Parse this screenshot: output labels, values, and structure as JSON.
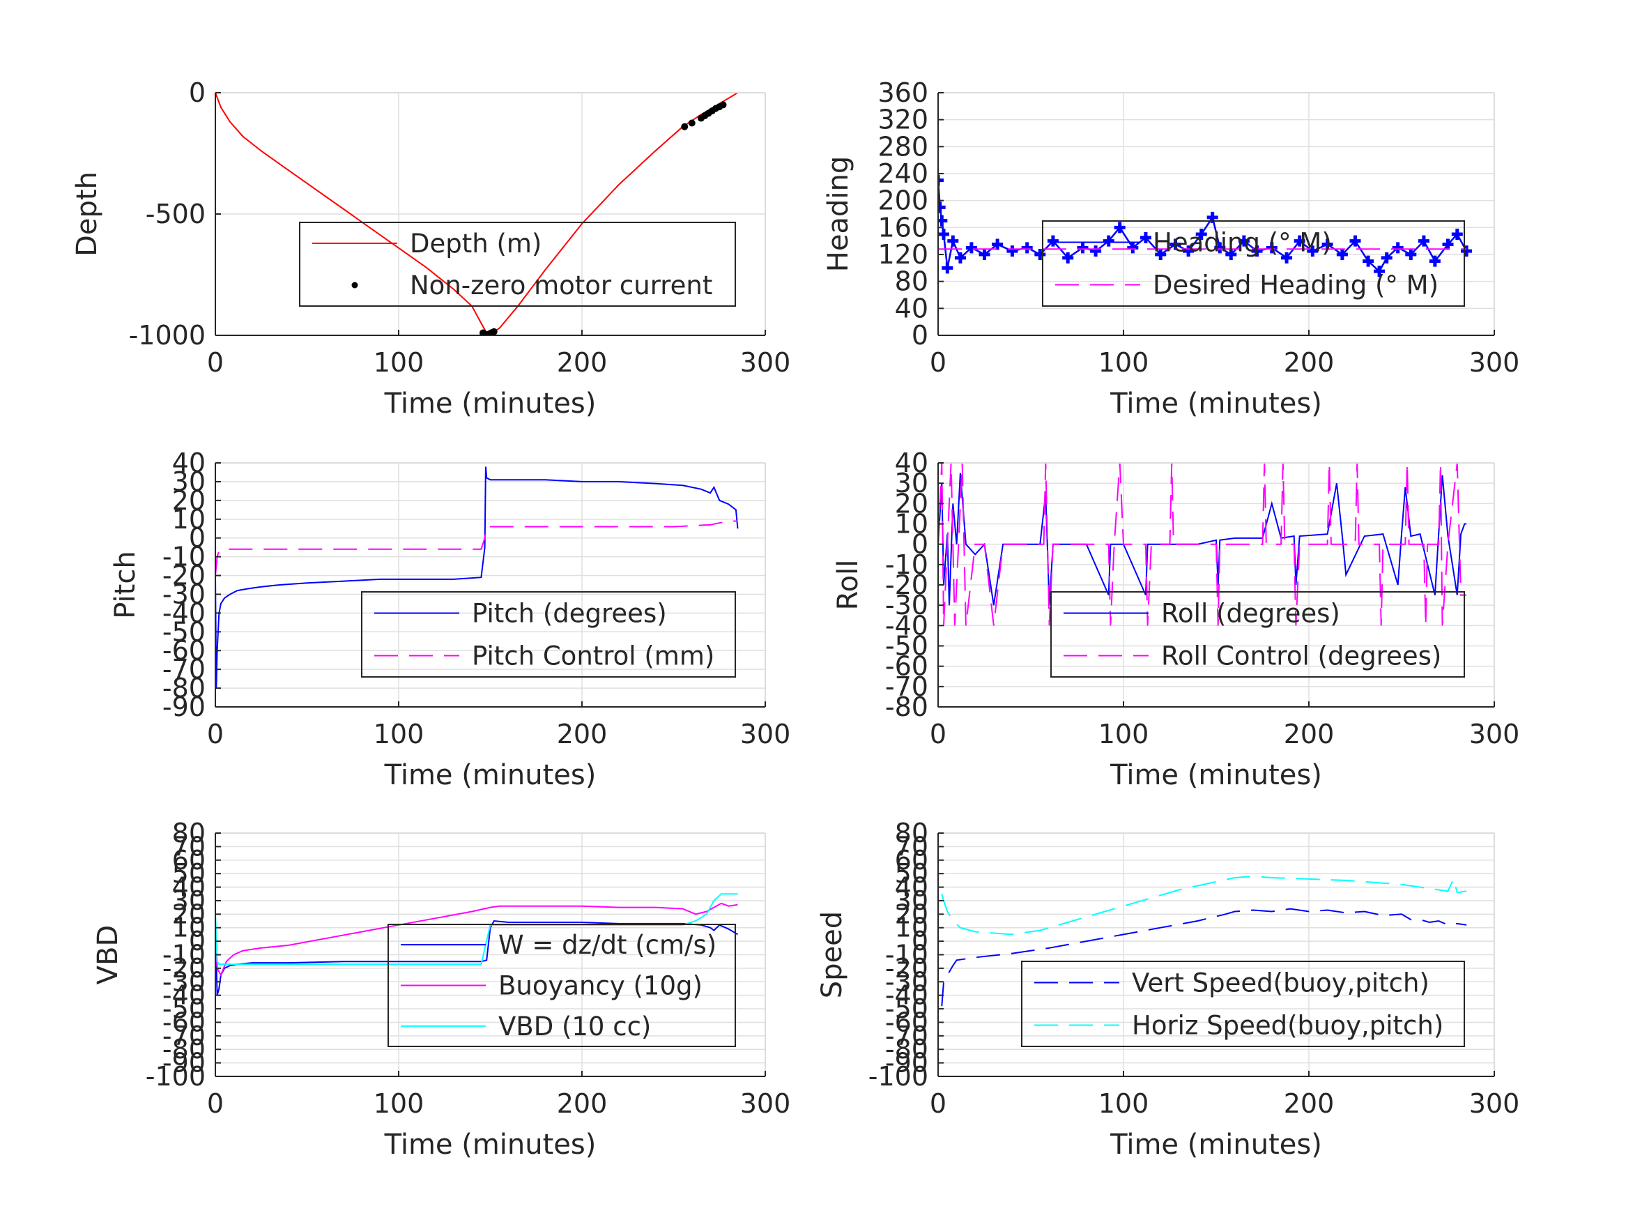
{
  "colors": {
    "red": "#ff0000",
    "blue": "#0000ff",
    "magenta": "#ff00ff",
    "cyan": "#00ffff",
    "black": "#000000"
  },
  "chart_data": [
    {
      "id": "depth",
      "type": "line",
      "xlabel": "Time (minutes)",
      "ylabel": "Depth",
      "xlim": [
        0,
        300
      ],
      "ylim": [
        -1000,
        0
      ],
      "xticks": [
        0,
        100,
        200,
        300
      ],
      "yticks": [
        0,
        -500,
        -1000
      ],
      "ytick_labels": [
        "0",
        "-500",
        "-1000"
      ],
      "grid": true,
      "legend_position": "bottom-right",
      "series": [
        {
          "name": "Depth (m)",
          "color": "red",
          "style": "solid",
          "x": [
            0,
            3,
            8,
            15,
            25,
            40,
            55,
            70,
            85,
            100,
            115,
            130,
            140,
            145,
            148,
            150,
            155,
            165,
            180,
            200,
            220,
            240,
            255,
            265,
            275,
            285
          ],
          "y": [
            0,
            -60,
            -120,
            -180,
            -240,
            -320,
            -400,
            -480,
            -560,
            -640,
            -720,
            -810,
            -880,
            -950,
            -990,
            -995,
            -970,
            -880,
            -730,
            -540,
            -380,
            -240,
            -140,
            -90,
            -45,
            0
          ]
        },
        {
          "name": "Non-zero motor current",
          "color": "black",
          "style": "dots",
          "x": [
            146,
            147,
            148,
            149,
            150,
            151,
            152,
            256,
            260,
            265,
            267,
            269,
            271,
            273,
            275,
            277
          ],
          "y": [
            -990,
            -995,
            -998,
            -996,
            -992,
            -988,
            -985,
            -140,
            -125,
            -105,
            -95,
            -85,
            -75,
            -65,
            -58,
            -50
          ]
        }
      ]
    },
    {
      "id": "heading",
      "type": "line",
      "xlabel": "Time (minutes)",
      "ylabel": "Heading",
      "xlim": [
        0,
        300
      ],
      "ylim": [
        0,
        360
      ],
      "xticks": [
        0,
        100,
        200,
        300
      ],
      "yticks": [
        0,
        40,
        80,
        120,
        160,
        200,
        240,
        280,
        320,
        360
      ],
      "ytick_labels": [
        "0",
        "40",
        "80",
        "120",
        "160",
        "200",
        "240",
        "280",
        "320",
        "360"
      ],
      "grid": true,
      "legend_position": "right",
      "series": [
        {
          "name": "Heading (° M)",
          "color": "blue",
          "style": "plus",
          "x": [
            0,
            1,
            2,
            3,
            5,
            8,
            12,
            18,
            25,
            32,
            40,
            48,
            55,
            62,
            70,
            78,
            85,
            92,
            98,
            105,
            112,
            120,
            128,
            135,
            142,
            148,
            152,
            158,
            165,
            172,
            180,
            188,
            195,
            202,
            210,
            218,
            225,
            232,
            238,
            242,
            248,
            255,
            262,
            268,
            275,
            280,
            285
          ],
          "y": [
            230,
            190,
            170,
            150,
            100,
            140,
            115,
            130,
            120,
            135,
            125,
            130,
            120,
            140,
            115,
            130,
            125,
            140,
            160,
            130,
            145,
            120,
            135,
            125,
            150,
            175,
            130,
            120,
            140,
            125,
            130,
            115,
            140,
            125,
            135,
            120,
            140,
            110,
            95,
            115,
            130,
            120,
            140,
            110,
            135,
            150,
            125
          ]
        },
        {
          "name": "Desired Heading (° M)",
          "color": "magenta",
          "style": "dashed",
          "x": [
            0,
            285
          ],
          "y": [
            128,
            128
          ]
        }
      ]
    },
    {
      "id": "pitch",
      "type": "line",
      "xlabel": "Time (minutes)",
      "ylabel": "Pitch",
      "xlim": [
        0,
        300
      ],
      "ylim": [
        -90,
        40
      ],
      "xticks": [
        0,
        100,
        200,
        300
      ],
      "yticks": [
        40,
        30,
        20,
        10,
        0,
        -10,
        -20,
        -30,
        -40,
        -50,
        -60,
        -70,
        -80,
        -90
      ],
      "ytick_labels": [
        "40",
        "30",
        "20",
        "10",
        "0",
        "-10",
        "-20",
        "-30",
        "-40",
        "-50",
        "-60",
        "-70",
        "-80",
        "-90"
      ],
      "grid": true,
      "legend_position": "bottom-right",
      "series": [
        {
          "name": "Pitch (degrees)",
          "color": "blue",
          "style": "solid",
          "x": [
            0,
            0.5,
            1,
            2,
            3,
            5,
            8,
            12,
            18,
            25,
            35,
            50,
            70,
            90,
            110,
            130,
            145,
            147,
            147.5,
            148,
            150,
            160,
            180,
            200,
            220,
            240,
            255,
            265,
            270,
            272,
            275,
            280,
            284,
            285
          ],
          "y": [
            -20,
            -80,
            -60,
            -40,
            -35,
            -32,
            -30,
            -28,
            -27,
            -26,
            -25,
            -24,
            -23,
            -22,
            -22,
            -22,
            -21,
            -5,
            38,
            32,
            31,
            31,
            31,
            30,
            30,
            29,
            28,
            26,
            24,
            27,
            20,
            18,
            15,
            5
          ]
        },
        {
          "name": "Pitch Control (mm)",
          "color": "magenta",
          "style": "dashed",
          "x": [
            0,
            1,
            2,
            5,
            50,
            100,
            145,
            147,
            148,
            200,
            250,
            270,
            280,
            285
          ],
          "y": [
            -20,
            -10,
            -7,
            -6,
            -6,
            -6,
            -6,
            0,
            6,
            6,
            6,
            7,
            9,
            9
          ]
        }
      ]
    },
    {
      "id": "roll",
      "type": "line",
      "xlabel": "Time (minutes)",
      "ylabel": "Roll",
      "xlim": [
        0,
        300
      ],
      "ylim": [
        -80,
        40
      ],
      "xticks": [
        0,
        100,
        200,
        300
      ],
      "yticks": [
        40,
        30,
        20,
        10,
        0,
        -10,
        -20,
        -30,
        -40,
        -50,
        -60,
        -70,
        -80
      ],
      "ytick_labels": [
        "40",
        "30",
        "20",
        "10",
        "0",
        "-10",
        "-20",
        "-30",
        "-40",
        "-50",
        "-60",
        "-70",
        "-80"
      ],
      "grid": true,
      "legend_position": "bottom-right",
      "series": [
        {
          "name": "Roll (degrees)",
          "color": "blue",
          "style": "solid",
          "x": [
            0,
            2,
            3,
            5,
            6,
            8,
            10,
            12,
            15,
            20,
            25,
            30,
            35,
            50,
            55,
            58,
            60,
            62,
            65,
            80,
            92,
            93,
            95,
            100,
            112,
            113,
            115,
            140,
            150,
            151,
            152,
            160,
            175,
            180,
            185,
            192,
            193,
            195,
            210,
            215,
            218,
            220,
            230,
            240,
            248,
            250,
            252,
            255,
            260,
            268,
            270,
            272,
            275,
            280,
            282,
            284,
            285
          ],
          "y": [
            0,
            30,
            -20,
            5,
            -30,
            20,
            0,
            35,
            0,
            -5,
            0,
            -30,
            0,
            0,
            0,
            25,
            -30,
            0,
            0,
            0,
            -25,
            0,
            0,
            0,
            -25,
            0,
            0,
            0,
            2,
            -20,
            2,
            3,
            3,
            20,
            3,
            4,
            -20,
            4,
            5,
            30,
            4,
            -15,
            4,
            5,
            -20,
            5,
            28,
            4,
            5,
            -25,
            5,
            34,
            4,
            -25,
            5,
            10,
            10
          ]
        },
        {
          "name": "Roll Control (degrees)",
          "color": "magenta",
          "style": "dashed",
          "x": [
            0,
            2,
            3,
            5,
            7,
            9,
            11,
            13,
            15,
            20,
            25,
            30,
            35,
            50,
            57,
            58,
            60,
            62,
            92,
            93,
            95,
            98,
            100,
            112,
            113,
            115,
            125,
            126,
            127,
            140,
            150,
            151,
            152,
            175,
            176,
            177,
            185,
            186,
            187,
            192,
            193,
            195,
            210,
            211,
            212,
            225,
            226,
            227,
            238,
            239,
            240,
            252,
            253,
            254,
            262,
            263,
            264,
            270,
            271,
            272,
            275,
            280,
            282,
            285
          ],
          "y": [
            0,
            40,
            -40,
            0,
            40,
            -40,
            0,
            40,
            -40,
            0,
            0,
            -40,
            0,
            0,
            0,
            40,
            -40,
            0,
            0,
            -40,
            0,
            40,
            0,
            0,
            -40,
            0,
            0,
            40,
            0,
            0,
            0,
            -40,
            0,
            0,
            40,
            0,
            0,
            40,
            0,
            0,
            -40,
            0,
            0,
            40,
            0,
            0,
            40,
            0,
            0,
            -40,
            0,
            0,
            40,
            0,
            0,
            -40,
            0,
            0,
            40,
            -40,
            0,
            40,
            -25,
            -25
          ]
        }
      ]
    },
    {
      "id": "vbd",
      "type": "line",
      "xlabel": "Time (minutes)",
      "ylabel": "VBD",
      "xlim": [
        0,
        300
      ],
      "ylim": [
        -100,
        80
      ],
      "xticks": [
        0,
        100,
        200,
        300
      ],
      "yticks": [
        80,
        70,
        60,
        50,
        40,
        30,
        20,
        10,
        0,
        -10,
        -20,
        -30,
        -40,
        -50,
        -60,
        -70,
        -80,
        -90,
        -100
      ],
      "ytick_labels": [
        "80",
        "70",
        "60",
        "50",
        "40",
        "30",
        "20",
        "10",
        "0",
        "-10",
        "-20",
        "-30",
        "-40",
        "-50",
        "-60",
        "-70",
        "-80",
        "-90",
        "-100"
      ],
      "grid": true,
      "legend_position": "bottom-right",
      "series": [
        {
          "name": "W = dz/dt (cm/s)",
          "color": "blue",
          "style": "solid",
          "x": [
            0,
            1,
            2,
            3,
            5,
            8,
            12,
            20,
            40,
            70,
            100,
            130,
            145,
            148,
            150,
            152,
            160,
            180,
            200,
            220,
            240,
            255,
            265,
            270,
            272,
            275,
            280,
            285
          ],
          "y": [
            15,
            -40,
            -35,
            -25,
            -20,
            -18,
            -17,
            -16,
            -16,
            -15,
            -15,
            -15,
            -15,
            -14,
            10,
            15,
            14,
            14,
            14,
            13,
            13,
            13,
            12,
            10,
            8,
            12,
            9,
            5
          ]
        },
        {
          "name": "Buoyancy (10g)",
          "color": "magenta",
          "style": "solid",
          "x": [
            0,
            1,
            3,
            6,
            10,
            15,
            25,
            40,
            60,
            80,
            100,
            120,
            140,
            150,
            155,
            180,
            200,
            220,
            240,
            255,
            262,
            268,
            272,
            276,
            280,
            285
          ],
          "y": [
            10,
            -20,
            -25,
            -15,
            -10,
            -7,
            -5,
            -3,
            2,
            7,
            12,
            17,
            22,
            25,
            26,
            26,
            26,
            25,
            25,
            24,
            20,
            22,
            25,
            28,
            26,
            27
          ]
        },
        {
          "name": "VBD (10 cc)",
          "color": "cyan",
          "style": "solid",
          "x": [
            0,
            1,
            2,
            4,
            10,
            30,
            80,
            145,
            150,
            200,
            255,
            262,
            268,
            272,
            276,
            285
          ],
          "y": [
            20,
            -15,
            -17,
            -17,
            -17,
            -17,
            -17,
            -17,
            12,
            12,
            12,
            15,
            20,
            30,
            35,
            35
          ]
        }
      ]
    },
    {
      "id": "speed",
      "type": "line",
      "xlabel": "Time (minutes)",
      "ylabel": "Speed",
      "xlim": [
        0,
        300
      ],
      "ylim": [
        -100,
        80
      ],
      "xticks": [
        0,
        100,
        200,
        300
      ],
      "yticks": [
        80,
        70,
        60,
        50,
        40,
        30,
        20,
        10,
        0,
        -10,
        -20,
        -30,
        -40,
        -50,
        -60,
        -70,
        -80,
        -90,
        -100
      ],
      "ytick_labels": [
        "80",
        "70",
        "60",
        "50",
        "40",
        "30",
        "20",
        "10",
        "0",
        "-10",
        "-20",
        "-30",
        "-40",
        "-50",
        "-60",
        "-70",
        "-80",
        "-90",
        "-100"
      ],
      "grid": true,
      "legend_position": "bottom-right",
      "series": [
        {
          "name": "Vert Speed(buoy,pitch)",
          "color": "blue",
          "style": "dashed",
          "x": [
            2,
            3,
            5,
            8,
            10,
            20,
            40,
            60,
            80,
            100,
            120,
            140,
            155,
            160,
            170,
            180,
            190,
            200,
            210,
            220,
            230,
            240,
            250,
            255,
            260,
            265,
            270,
            275,
            280,
            285
          ],
          "y": [
            -48,
            -30,
            -25,
            -18,
            -14,
            -12,
            -9,
            -5,
            0,
            5,
            10,
            15,
            20,
            22,
            23,
            22,
            24,
            22,
            23,
            21,
            22,
            19,
            20,
            16,
            16,
            14,
            15,
            12,
            13,
            12
          ]
        },
        {
          "name": "Horiz Speed(buoy,pitch)",
          "color": "cyan",
          "style": "dashed",
          "x": [
            2,
            3,
            5,
            8,
            12,
            20,
            30,
            40,
            55,
            70,
            90,
            110,
            130,
            150,
            160,
            170,
            180,
            200,
            220,
            240,
            250,
            260,
            265,
            270,
            275,
            278,
            280,
            285
          ],
          "y": [
            35,
            30,
            22,
            15,
            10,
            7,
            6,
            5,
            8,
            14,
            22,
            30,
            38,
            44,
            47,
            48,
            47,
            46,
            45,
            43,
            42,
            40,
            39,
            38,
            37,
            46,
            36,
            37
          ]
        }
      ]
    }
  ]
}
